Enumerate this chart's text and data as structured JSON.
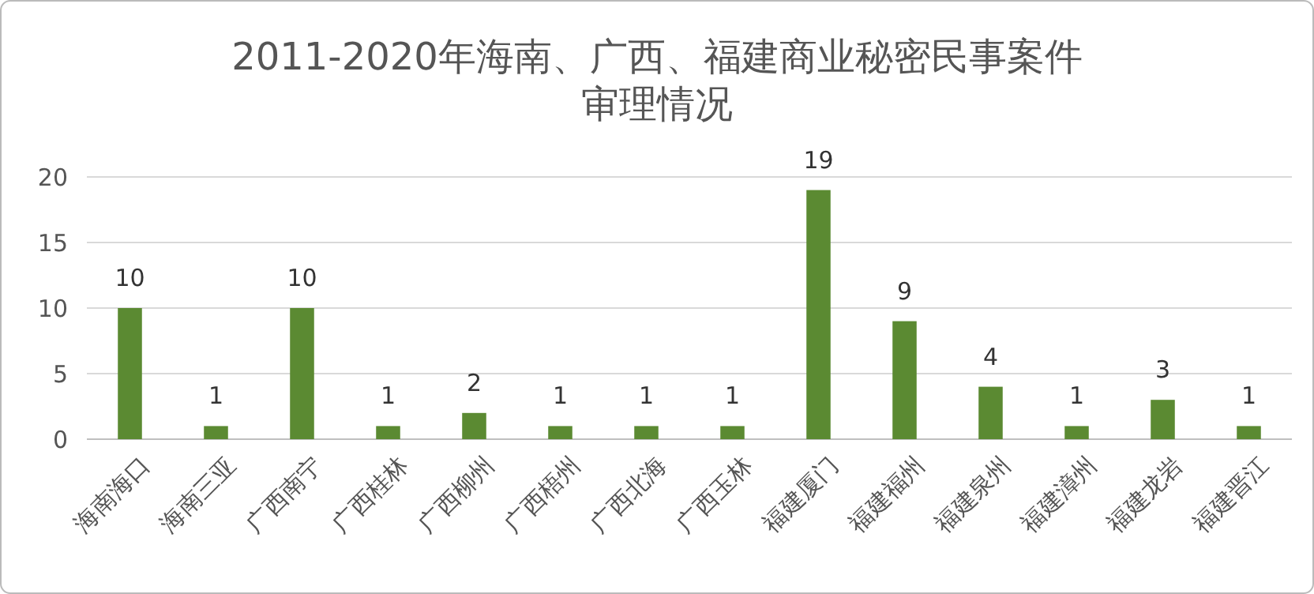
{
  "chart_data": {
    "type": "bar",
    "title": "2011-2020年海南、广西、福建商业秘密民事案件审理情况",
    "categories": [
      "海南海口",
      "海南三亚",
      "广西南宁",
      "广西桂林",
      "广西柳州",
      "广西梧州",
      "广西北海",
      "广西玉林",
      "福建厦门",
      "福建福州",
      "福建泉州",
      "福建漳州",
      "福建龙岩",
      "福建晋江"
    ],
    "values": [
      10,
      1,
      10,
      1,
      2,
      1,
      1,
      1,
      19,
      9,
      4,
      1,
      3,
      1
    ],
    "color": "#5b8a32",
    "ylim": [
      0,
      20
    ],
    "yticks": [
      0,
      5,
      10,
      15,
      20
    ],
    "grid": "y",
    "data_labels": true
  }
}
